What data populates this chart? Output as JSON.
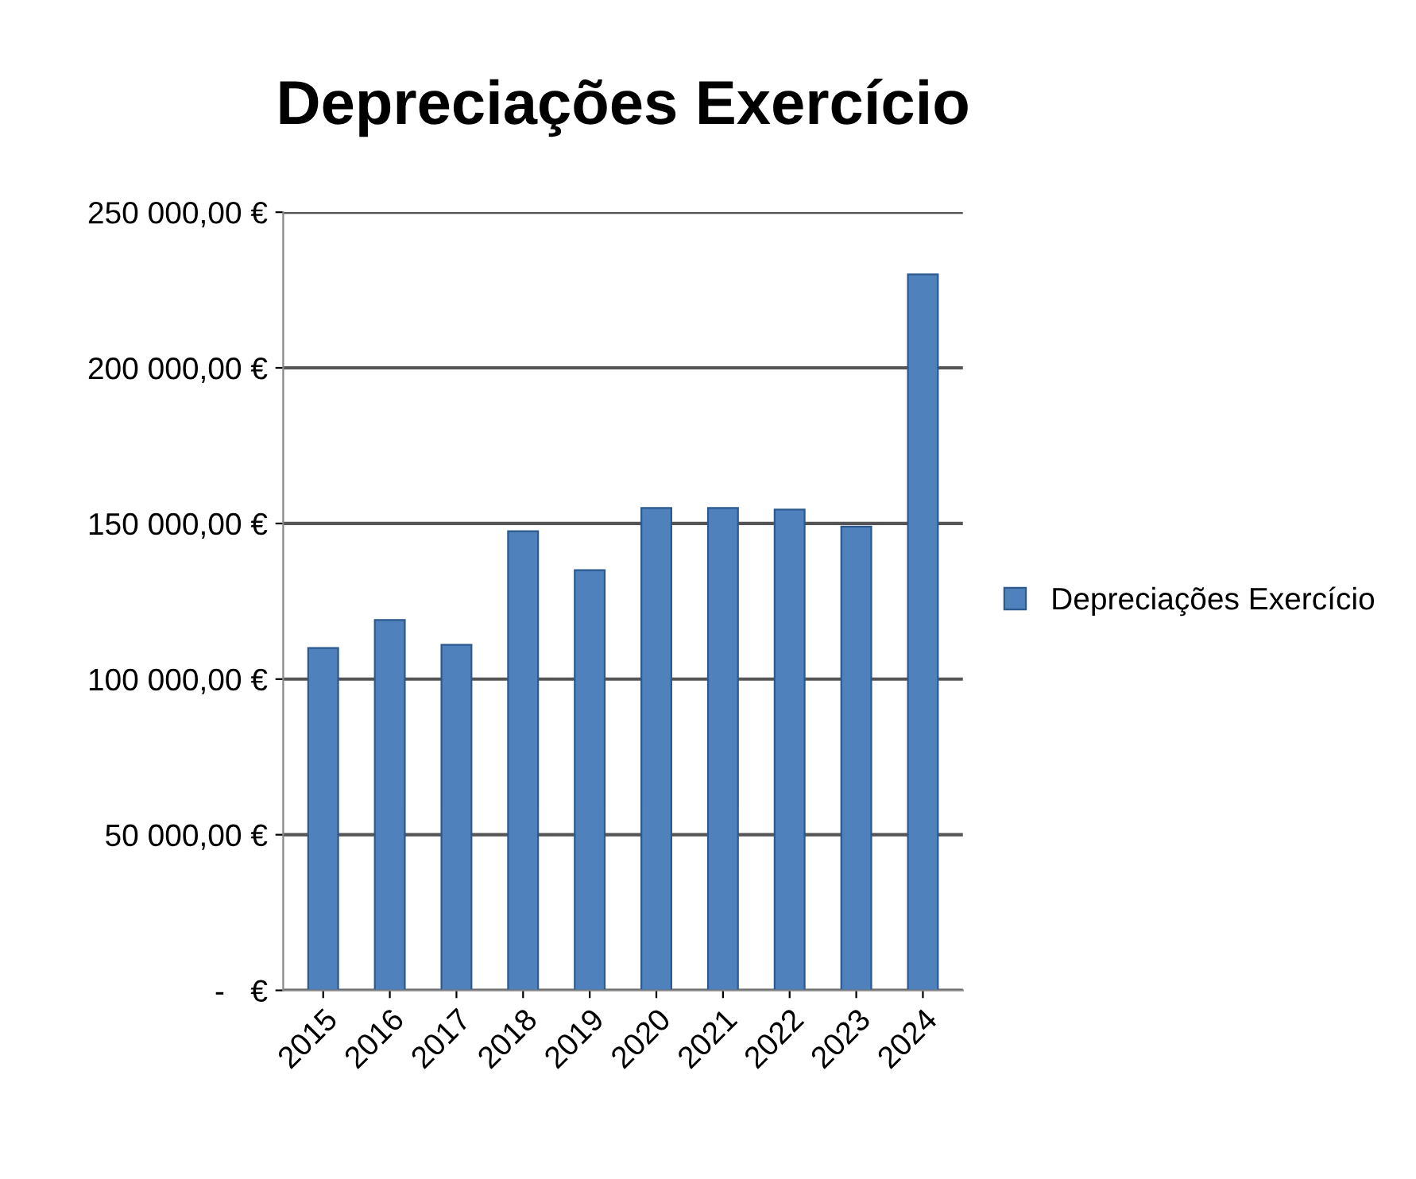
{
  "chart_data": {
    "type": "bar",
    "title": "Depreciações Exercício",
    "categories": [
      "2015",
      "2016",
      "2017",
      "2018",
      "2019",
      "2020",
      "2021",
      "2022",
      "2023",
      "2024"
    ],
    "series": [
      {
        "name": "Depreciações Exercício",
        "color": "#4f81bd",
        "values": [
          110000,
          119000,
          111000,
          147500,
          135000,
          155000,
          155000,
          154500,
          149000,
          230000
        ]
      }
    ],
    "ylim": [
      0,
      250000
    ],
    "yticks": [
      {
        "value": 0,
        "label": "-   €"
      },
      {
        "value": 50000,
        "label": "50 000,00 €"
      },
      {
        "value": 100000,
        "label": "100 000,00 €"
      },
      {
        "value": 150000,
        "label": "150 000,00 €"
      },
      {
        "value": 200000,
        "label": "200 000,00 €"
      },
      {
        "value": 250000,
        "label": "250 000,00 €"
      }
    ],
    "grid": "y",
    "legend": "right"
  }
}
